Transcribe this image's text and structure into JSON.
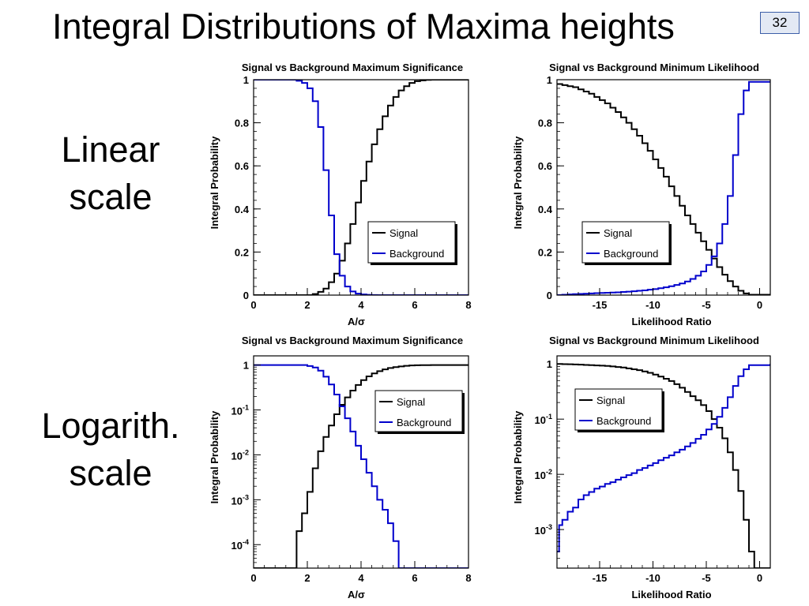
{
  "slide": {
    "title": "Integral Distributions of Maxima heights",
    "page_number": "32",
    "row_labels": {
      "linear": [
        "Linear",
        "scale"
      ],
      "log": [
        "Logarith.",
        "scale"
      ]
    }
  },
  "chart_data": [
    {
      "type": "line",
      "title": "Signal vs Background Maximum Significance",
      "xlabel": "A/σ",
      "ylabel": "Integral Probability",
      "xlim": [
        0,
        8
      ],
      "ylim": [
        0,
        1
      ],
      "yscale": "linear",
      "xticks": [
        0,
        2,
        4,
        6,
        8
      ],
      "xtick_labels": [
        "0",
        "2",
        "4",
        "6",
        "8"
      ],
      "yticks": [
        0,
        0.2,
        0.4,
        0.6,
        0.8,
        1
      ],
      "ytick_labels": [
        "0",
        "0.2",
        "0.4",
        "0.6",
        "0.8",
        "1"
      ],
      "legend_position": "center-right",
      "series": [
        {
          "name": "Signal",
          "color": "#000000",
          "x": [
            0,
            2.2,
            2.4,
            2.6,
            2.8,
            3.0,
            3.2,
            3.4,
            3.6,
            3.8,
            4.0,
            4.2,
            4.4,
            4.6,
            4.8,
            5.0,
            5.2,
            5.4,
            5.6,
            5.8,
            6.0,
            6.2,
            6.4,
            6.6,
            8
          ],
          "y": [
            0,
            0.005,
            0.015,
            0.03,
            0.06,
            0.1,
            0.16,
            0.24,
            0.33,
            0.43,
            0.53,
            0.62,
            0.7,
            0.77,
            0.83,
            0.88,
            0.92,
            0.95,
            0.97,
            0.985,
            0.993,
            0.997,
            0.999,
            1,
            1
          ]
        },
        {
          "name": "Background",
          "color": "#0000cc",
          "x": [
            0,
            1.6,
            1.8,
            2.0,
            2.2,
            2.4,
            2.6,
            2.8,
            3.0,
            3.2,
            3.4,
            3.6,
            3.8,
            4.0,
            4.2,
            4.4,
            4.6,
            4.8,
            8
          ],
          "y": [
            1,
            0.995,
            0.985,
            0.96,
            0.9,
            0.78,
            0.58,
            0.37,
            0.19,
            0.09,
            0.04,
            0.017,
            0.007,
            0.003,
            0.0012,
            0.0005,
            0.0002,
            0,
            0
          ]
        }
      ]
    },
    {
      "type": "line",
      "title": "Signal vs Background Minimum Likelihood",
      "xlabel": "Likelihood Ratio",
      "ylabel": "Integral Probability",
      "xlim": [
        -19,
        1
      ],
      "ylim": [
        0,
        1
      ],
      "yscale": "linear",
      "xticks": [
        -15,
        -10,
        -5,
        0
      ],
      "xtick_labels": [
        "-15",
        "-10",
        "-5",
        "0"
      ],
      "yticks": [
        0,
        0.2,
        0.4,
        0.6,
        0.8,
        1
      ],
      "ytick_labels": [
        "0",
        "0.2",
        "0.4",
        "0.6",
        "0.8",
        "1"
      ],
      "legend_position": "center-right",
      "series": [
        {
          "name": "Signal",
          "color": "#000000",
          "x": [
            -19,
            -18.5,
            -18,
            -17.5,
            -17,
            -16.5,
            -16,
            -15.5,
            -15,
            -14.5,
            -14,
            -13.5,
            -13,
            -12.5,
            -12,
            -11.5,
            -11,
            -10.5,
            -10,
            -9.5,
            -9,
            -8.5,
            -8,
            -7.5,
            -7,
            -6.5,
            -6,
            -5.5,
            -5,
            -4.5,
            -4,
            -3.5,
            -3,
            -2.5,
            -2,
            -1.5,
            -1,
            1
          ],
          "y": [
            0.98,
            0.975,
            0.97,
            0.965,
            0.955,
            0.945,
            0.935,
            0.92,
            0.905,
            0.89,
            0.87,
            0.85,
            0.825,
            0.8,
            0.77,
            0.74,
            0.705,
            0.67,
            0.63,
            0.59,
            0.55,
            0.505,
            0.46,
            0.415,
            0.37,
            0.33,
            0.29,
            0.25,
            0.21,
            0.17,
            0.13,
            0.095,
            0.065,
            0.04,
            0.02,
            0.008,
            0.002,
            0
          ]
        },
        {
          "name": "Background",
          "color": "#0000cc",
          "x": [
            -19,
            -18.5,
            -18,
            -17.5,
            -17,
            -16.5,
            -16,
            -15.5,
            -15,
            -14.5,
            -14,
            -13.5,
            -13,
            -12.5,
            -12,
            -11.5,
            -11,
            -10.5,
            -10,
            -9.5,
            -9,
            -8.5,
            -8,
            -7.5,
            -7,
            -6.5,
            -6,
            -5.5,
            -5,
            -4.5,
            -4,
            -3.5,
            -3,
            -2.5,
            -2,
            -1.5,
            -1,
            1
          ],
          "y": [
            0.0005,
            0.002,
            0.003,
            0.0045,
            0.0055,
            0.0065,
            0.008,
            0.009,
            0.01,
            0.011,
            0.012,
            0.013,
            0.0145,
            0.016,
            0.018,
            0.02,
            0.022,
            0.025,
            0.028,
            0.032,
            0.036,
            0.041,
            0.047,
            0.054,
            0.063,
            0.075,
            0.09,
            0.11,
            0.14,
            0.18,
            0.24,
            0.33,
            0.46,
            0.65,
            0.84,
            0.95,
            0.99,
            0.99
          ]
        }
      ]
    },
    {
      "type": "line",
      "title": "Signal vs Background Maximum Significance",
      "xlabel": "A/σ",
      "ylabel": "Integral Probability",
      "xlim": [
        0,
        8
      ],
      "ylim": [
        3e-05,
        1.6
      ],
      "yscale": "log",
      "xticks": [
        0,
        2,
        4,
        6,
        8
      ],
      "xtick_labels": [
        "0",
        "2",
        "4",
        "6",
        "8"
      ],
      "yticks": [
        0.0001,
        0.001,
        0.01,
        0.1,
        1
      ],
      "ytick_labels": [
        "10-4",
        "10-3",
        "10-2",
        "10-1",
        "1"
      ],
      "legend_position": "top-right",
      "series": [
        {
          "name": "Signal",
          "color": "#000000",
          "x": [
            0,
            1.6,
            1.8,
            2.0,
            2.2,
            2.4,
            2.6,
            2.8,
            3.0,
            3.2,
            3.4,
            3.6,
            3.8,
            4.0,
            4.2,
            4.4,
            4.6,
            4.8,
            5.0,
            5.2,
            5.4,
            5.6,
            5.8,
            6.0,
            6.2,
            6.6,
            8
          ],
          "y": [
            3e-05,
            0.0002,
            0.0005,
            0.0015,
            0.005,
            0.012,
            0.025,
            0.045,
            0.08,
            0.13,
            0.19,
            0.27,
            0.36,
            0.46,
            0.56,
            0.65,
            0.73,
            0.8,
            0.86,
            0.9,
            0.93,
            0.96,
            0.98,
            0.99,
            0.995,
            1,
            1
          ]
        },
        {
          "name": "Background",
          "color": "#0000cc",
          "x": [
            0,
            2.0,
            2.2,
            2.4,
            2.6,
            2.8,
            3.0,
            3.2,
            3.4,
            3.6,
            3.8,
            4.0,
            4.2,
            4.4,
            4.6,
            4.8,
            5.0,
            5.2,
            5.4,
            8
          ],
          "y": [
            1,
            0.95,
            0.88,
            0.75,
            0.55,
            0.37,
            0.22,
            0.12,
            0.065,
            0.033,
            0.016,
            0.008,
            0.004,
            0.002,
            0.001,
            0.0006,
            0.0003,
            0.00012,
            3e-05,
            3e-05
          ]
        }
      ]
    },
    {
      "type": "line",
      "title": "Signal vs Background Minimum Likelihood",
      "xlabel": "Likelihood Ratio",
      "ylabel": "Integral Probability",
      "xlim": [
        -19,
        1
      ],
      "ylim": [
        0.0002,
        1.4
      ],
      "yscale": "log",
      "xticks": [
        -15,
        -10,
        -5,
        0
      ],
      "xtick_labels": [
        "-15",
        "-10",
        "-5",
        "0"
      ],
      "yticks": [
        0.001,
        0.01,
        0.1,
        1
      ],
      "ytick_labels": [
        "10-3",
        "10-2",
        "10-1",
        "1"
      ],
      "legend_position": "top-left",
      "series": [
        {
          "name": "Signal",
          "color": "#000000",
          "x": [
            -19,
            -18.5,
            -18,
            -17.5,
            -17,
            -16.5,
            -16,
            -15.5,
            -15,
            -14.5,
            -14,
            -13.5,
            -13,
            -12.5,
            -12,
            -11.5,
            -11,
            -10.5,
            -10,
            -9.5,
            -9,
            -8.5,
            -8,
            -7.5,
            -7,
            -6.5,
            -6,
            -5.5,
            -5,
            -4.5,
            -4,
            -3.5,
            -3,
            -2.5,
            -2,
            -1.5,
            -1,
            -0.5,
            1
          ],
          "y": [
            1,
            0.99,
            0.985,
            0.98,
            0.97,
            0.96,
            0.95,
            0.94,
            0.93,
            0.92,
            0.9,
            0.88,
            0.86,
            0.83,
            0.8,
            0.77,
            0.73,
            0.69,
            0.64,
            0.59,
            0.54,
            0.49,
            0.43,
            0.37,
            0.31,
            0.26,
            0.22,
            0.18,
            0.14,
            0.1,
            0.07,
            0.045,
            0.025,
            0.012,
            0.005,
            0.0015,
            0.0004,
            0.0002,
            0.0002
          ]
        },
        {
          "name": "Background",
          "color": "#0000cc",
          "x": [
            -19,
            -18.8,
            -18.5,
            -18,
            -17.5,
            -17,
            -16.5,
            -16,
            -15.5,
            -15,
            -14.5,
            -14,
            -13.5,
            -13,
            -12.5,
            -12,
            -11.5,
            -11,
            -10.5,
            -10,
            -9.5,
            -9,
            -8.5,
            -8,
            -7.5,
            -7,
            -6.5,
            -6,
            -5.5,
            -5,
            -4.5,
            -4,
            -3.5,
            -3,
            -2.5,
            -2,
            -1.5,
            -1,
            1
          ],
          "y": [
            0.0004,
            0.0012,
            0.0015,
            0.0021,
            0.0025,
            0.0035,
            0.0042,
            0.0048,
            0.0055,
            0.006,
            0.0067,
            0.0072,
            0.008,
            0.0088,
            0.0097,
            0.0105,
            0.012,
            0.013,
            0.0145,
            0.016,
            0.018,
            0.02,
            0.022,
            0.025,
            0.028,
            0.032,
            0.037,
            0.044,
            0.052,
            0.065,
            0.082,
            0.11,
            0.16,
            0.25,
            0.4,
            0.6,
            0.8,
            0.95,
            1
          ]
        }
      ]
    }
  ]
}
